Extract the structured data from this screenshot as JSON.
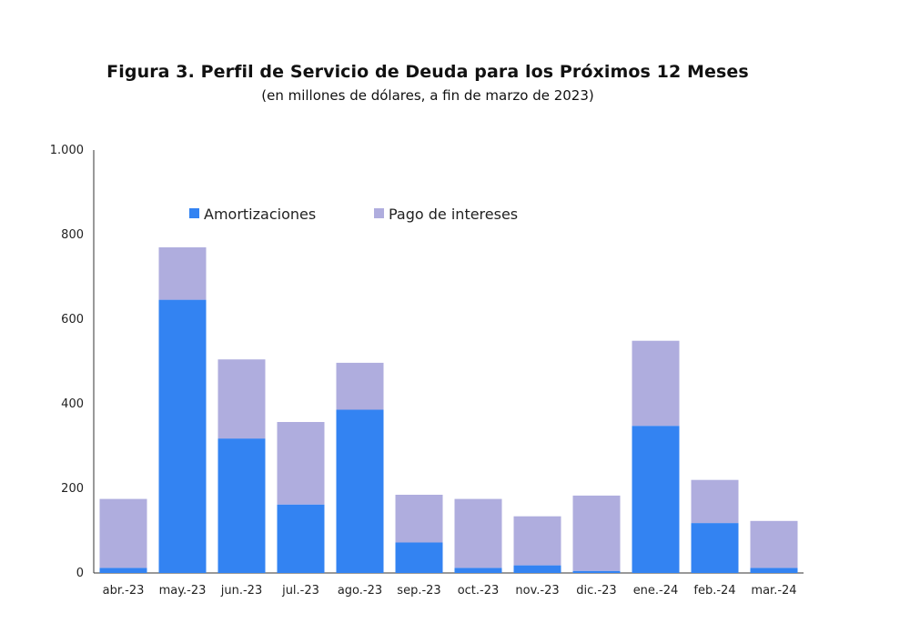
{
  "chart_data": {
    "type": "bar",
    "stacked": true,
    "title": "Figura 3. Perfil de Servicio de Deuda para los Próximos 12 Meses",
    "subtitle": "(en millones de dólares, a fin de marzo de 2023)",
    "xlabel": "",
    "ylabel": "",
    "ylim": [
      0,
      1000
    ],
    "yticks": [
      0,
      200,
      400,
      600,
      800,
      1000
    ],
    "ytick_labels": [
      "0",
      "200",
      "400",
      "600",
      "800",
      "1.000"
    ],
    "legend_position": "top-center",
    "categories": [
      "abr.-23",
      "may.-23",
      "jun.-23",
      "jul.-23",
      "ago.-23",
      "sep.-23",
      "oct.-23",
      "nov.-23",
      "dic.-23",
      "ene.-24",
      "feb.-24",
      "mar.-24"
    ],
    "series": [
      {
        "name": "Amortizaciones",
        "color": "#3383f2",
        "values": [
          12,
          646,
          318,
          162,
          386,
          72,
          12,
          18,
          5,
          348,
          118,
          12
        ]
      },
      {
        "name": "Pago de intereses",
        "color": "#afadde",
        "values": [
          163,
          124,
          187,
          195,
          111,
          113,
          163,
          116,
          178,
          201,
          102,
          111
        ]
      }
    ]
  }
}
